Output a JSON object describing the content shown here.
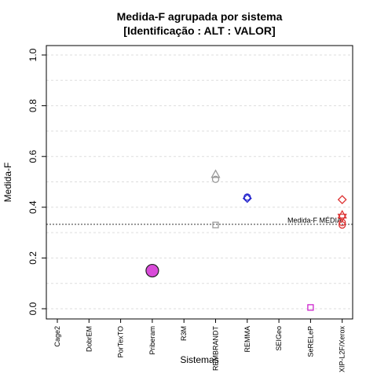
{
  "chart_data": {
    "type": "scatter",
    "title_line1": "Medida-F agrupada por sistema",
    "title_line2": "[Identificação : ALT : VALOR]",
    "xlabel": "Sistemas",
    "ylabel": "Medida-F",
    "ylim": [
      0,
      1
    ],
    "yticks": [
      0.0,
      0.2,
      0.4,
      0.6,
      0.8,
      1.0
    ],
    "ytick_labels": [
      "0.0",
      "0.2",
      "0.4",
      "0.6",
      "0.8",
      "1.0"
    ],
    "grid": true,
    "categories": [
      "Cage2",
      "DobrEM",
      "PorTexTO",
      "Priberam",
      "R3M",
      "REMBRANDT",
      "REMMA",
      "SEIGeo",
      "SeRELeP",
      "XIP-L2F/Xerox"
    ],
    "points": [
      {
        "category": "Priberam",
        "y": 0.15,
        "shape": "circle-filled",
        "size": "large",
        "color": "#d94bd9"
      },
      {
        "category": "REMBRANDT",
        "y": 0.53,
        "shape": "triangle-up",
        "size": "normal",
        "color": "#999999"
      },
      {
        "category": "REMBRANDT",
        "y": 0.51,
        "shape": "circle",
        "size": "normal",
        "color": "#999999"
      },
      {
        "category": "REMBRANDT",
        "y": 0.33,
        "shape": "square",
        "size": "normal",
        "color": "#999999"
      },
      {
        "category": "REMMA",
        "y": 0.44,
        "shape": "circle",
        "size": "normal",
        "color": "#2222cc"
      },
      {
        "category": "REMMA",
        "y": 0.435,
        "shape": "diamond",
        "size": "normal",
        "color": "#2222cc"
      },
      {
        "category": "SeRELeP",
        "y": 0.005,
        "shape": "square",
        "size": "normal",
        "color": "#cc22cc"
      },
      {
        "category": "XIP-L2F/Xerox",
        "y": 0.43,
        "shape": "diamond",
        "size": "normal",
        "color": "#dd3333"
      },
      {
        "category": "XIP-L2F/Xerox",
        "y": 0.37,
        "shape": "triangle-up",
        "size": "normal",
        "color": "#dd3333"
      },
      {
        "category": "XIP-L2F/Xerox",
        "y": 0.36,
        "shape": "triangle-down",
        "size": "normal",
        "color": "#dd3333"
      },
      {
        "category": "XIP-L2F/Xerox",
        "y": 0.34,
        "shape": "circle",
        "size": "normal",
        "color": "#dd3333"
      },
      {
        "category": "XIP-L2F/Xerox",
        "y": 0.33,
        "shape": "circle",
        "size": "normal",
        "color": "#dd3333"
      }
    ],
    "reference_line": {
      "y": 0.333,
      "label": "Medida-F MÉDIA",
      "color": "#777777"
    }
  }
}
